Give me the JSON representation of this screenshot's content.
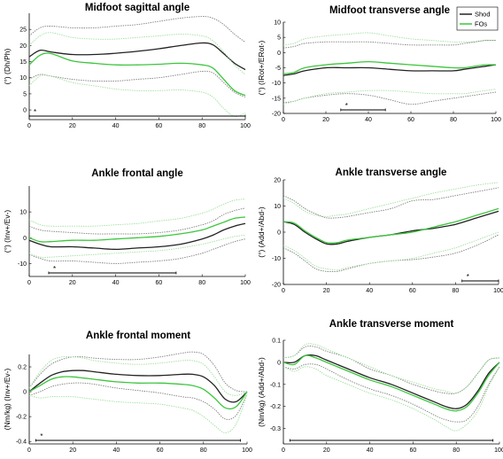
{
  "colors": {
    "shod": "#222222",
    "shod_sd": "#7a7a7a",
    "fos": "#3cc63c",
    "fos_sd": "#9adf9a",
    "axis": "#000000"
  },
  "legend": {
    "items": [
      "Shod",
      "FOs"
    ],
    "placement": "top-right of Midfoot transverse angle panel"
  },
  "chart_data": [
    {
      "type": "line",
      "title": "Midfoot sagittal angle",
      "ylabel": "(°) (Dh/Ph)",
      "xlim": [
        0,
        100
      ],
      "ylim": [
        -3,
        30
      ],
      "xticks": [
        0,
        20,
        40,
        60,
        80,
        100
      ],
      "yticks": [
        0,
        5,
        10,
        15,
        20,
        25
      ],
      "x": [
        0,
        5,
        10,
        20,
        30,
        40,
        50,
        60,
        70,
        80,
        85,
        90,
        95,
        100
      ],
      "series": [
        {
          "name": "Shod",
          "role": "mean",
          "values": [
            16.5,
            18.5,
            18,
            17.2,
            17.2,
            17.6,
            18.2,
            19,
            20,
            20.8,
            20.2,
            17.5,
            14.5,
            12.5
          ]
        },
        {
          "name": "Shod",
          "role": "sd",
          "values": [
            23,
            25.5,
            26,
            25.5,
            25.5,
            26,
            26.5,
            27.5,
            28.5,
            29,
            28.5,
            26.5,
            23.5,
            21
          ]
        },
        {
          "name": "Shod",
          "role": "sd",
          "values": [
            9.5,
            11,
            10.5,
            9.5,
            9,
            9,
            9.5,
            10,
            11,
            12,
            11.5,
            8.5,
            5.5,
            4
          ]
        },
        {
          "name": "FOs",
          "role": "mean",
          "values": [
            14,
            17,
            17.5,
            15.2,
            14.5,
            14,
            14,
            14.2,
            14.5,
            14,
            13,
            9.5,
            6,
            4.5
          ]
        },
        {
          "name": "FOs",
          "role": "sd",
          "values": [
            20,
            23,
            24,
            22.5,
            22,
            22,
            22.5,
            23,
            23.5,
            23,
            21.5,
            18,
            14,
            11
          ]
        },
        {
          "name": "FOs",
          "role": "sd",
          "values": [
            7.5,
            10.5,
            10.5,
            8.5,
            7.5,
            6.5,
            6,
            6,
            6.2,
            5.5,
            4,
            0.5,
            -2,
            -1
          ]
        }
      ],
      "significance": [
        {
          "from": 0,
          "to": 100,
          "label": "*"
        }
      ]
    },
    {
      "type": "line",
      "title": "Midfoot transverse angle",
      "ylabel": "(°) (IRot+/ERot-)",
      "xlim": [
        0,
        100
      ],
      "ylim": [
        -20,
        10
      ],
      "xticks": [
        0,
        20,
        40,
        60,
        80,
        100
      ],
      "yticks": [
        10,
        5,
        0,
        -5,
        -10,
        -15,
        -20
      ],
      "x": [
        0,
        5,
        10,
        20,
        30,
        40,
        50,
        60,
        70,
        80,
        85,
        90,
        95,
        100
      ],
      "series": [
        {
          "name": "Shod",
          "role": "mean",
          "values": [
            -7.5,
            -7,
            -6,
            -5,
            -5,
            -5,
            -5.5,
            -6,
            -6,
            -6,
            -5.5,
            -5,
            -4.5,
            -4
          ]
        },
        {
          "name": "Shod",
          "role": "sd",
          "values": [
            1.5,
            2,
            3,
            3.5,
            3.5,
            3.5,
            3,
            2.5,
            2.5,
            2.5,
            3,
            3.5,
            4,
            4
          ]
        },
        {
          "name": "Shod",
          "role": "sd",
          "values": [
            -16.5,
            -16,
            -15,
            -14,
            -13.5,
            -14,
            -15.5,
            -17,
            -16,
            -15,
            -14.5,
            -14,
            -13.5,
            -13
          ]
        },
        {
          "name": "FOs",
          "role": "mean",
          "values": [
            -7,
            -6.5,
            -5,
            -4,
            -3.5,
            -3,
            -3.5,
            -4,
            -4.5,
            -5,
            -5,
            -4.5,
            -4,
            -4
          ]
        },
        {
          "name": "FOs",
          "role": "sd",
          "values": [
            2.5,
            3,
            4.5,
            5.5,
            6,
            6.5,
            5.5,
            4.5,
            4,
            3.5,
            3.5,
            3.5,
            4,
            4
          ]
        },
        {
          "name": "FOs",
          "role": "sd",
          "values": [
            -17,
            -16,
            -15,
            -13.5,
            -13,
            -12.5,
            -12.5,
            -13,
            -13.5,
            -13.5,
            -13.5,
            -13,
            -12.5,
            -12
          ]
        }
      ],
      "significance": [
        {
          "from": 27,
          "to": 48,
          "label": "*"
        }
      ]
    },
    {
      "type": "line",
      "title": "Ankle frontal angle",
      "ylabel": "(°) (Inv+/Ev-)",
      "xlim": [
        0,
        100
      ],
      "ylim": [
        -15,
        20
      ],
      "xticks": [
        0,
        20,
        40,
        60,
        80,
        100
      ],
      "yticks": [
        10,
        0,
        -10
      ],
      "x": [
        0,
        5,
        10,
        20,
        30,
        40,
        50,
        60,
        70,
        80,
        85,
        90,
        95,
        100
      ],
      "series": [
        {
          "name": "Shod",
          "role": "mean",
          "values": [
            -1,
            -2.5,
            -3.5,
            -3.5,
            -4,
            -4.5,
            -4,
            -3.5,
            -2.5,
            -0.5,
            1,
            3,
            4.5,
            5.5
          ]
        },
        {
          "name": "Shod",
          "role": "sd",
          "values": [
            4.5,
            3,
            2.5,
            2,
            1.5,
            1.5,
            1.5,
            2,
            3,
            5,
            6.5,
            9,
            10.5,
            11.5
          ]
        },
        {
          "name": "Shod",
          "role": "sd",
          "values": [
            -6.5,
            -8,
            -9,
            -9,
            -9.5,
            -10,
            -9.5,
            -9,
            -8,
            -6,
            -4.5,
            -3,
            -1.5,
            -0.5
          ]
        },
        {
          "name": "FOs",
          "role": "mean",
          "values": [
            0,
            -1.5,
            -1.5,
            -1,
            -1,
            -0.5,
            0,
            0.5,
            1.5,
            3,
            4.5,
            6,
            7.5,
            8
          ]
        },
        {
          "name": "FOs",
          "role": "sd",
          "values": [
            7,
            5,
            4.5,
            4.5,
            4.5,
            5,
            5.5,
            6.5,
            7.5,
            9.5,
            11,
            13,
            14.5,
            15
          ]
        },
        {
          "name": "FOs",
          "role": "sd",
          "values": [
            -6,
            -7.5,
            -7.5,
            -7,
            -6.5,
            -6,
            -5.5,
            -5,
            -4,
            -2.5,
            -1.5,
            -0.5,
            0.5,
            1
          ]
        }
      ],
      "significance": [
        {
          "from": 9,
          "to": 68,
          "label": "*"
        }
      ]
    },
    {
      "type": "line",
      "title": "Ankle transverse angle",
      "ylabel": "(°) (Add+/Abd-)",
      "xlim": [
        0,
        100
      ],
      "ylim": [
        -20,
        20
      ],
      "xticks": [
        0,
        20,
        40,
        60,
        80,
        100
      ],
      "yticks": [
        20,
        10,
        0,
        -10,
        -20
      ],
      "x": [
        0,
        5,
        10,
        15,
        20,
        25,
        30,
        40,
        50,
        60,
        70,
        80,
        90,
        100
      ],
      "series": [
        {
          "name": "Shod",
          "role": "mean",
          "values": [
            4,
            3,
            0,
            -2.5,
            -4.5,
            -4.5,
            -3.5,
            -2,
            -1,
            0.5,
            1.5,
            3,
            5.5,
            8
          ]
        },
        {
          "name": "Shod",
          "role": "sd",
          "values": [
            14,
            12,
            9,
            7,
            5.5,
            5.5,
            6,
            7.5,
            9,
            12,
            12.5,
            14,
            15.5,
            17
          ]
        },
        {
          "name": "Shod",
          "role": "sd",
          "values": [
            -6,
            -8,
            -11,
            -14,
            -15,
            -15,
            -14,
            -12,
            -11,
            -10.5,
            -9.5,
            -8,
            -5,
            -1
          ]
        },
        {
          "name": "FOs",
          "role": "mean",
          "values": [
            4,
            3.5,
            0.5,
            -2,
            -4,
            -4,
            -3,
            -2,
            -1,
            0,
            2,
            4,
            6.5,
            9
          ]
        },
        {
          "name": "FOs",
          "role": "sd",
          "values": [
            13,
            11,
            8,
            6.5,
            6,
            6.5,
            7,
            9,
            11,
            13,
            15,
            16.5,
            18,
            19
          ]
        },
        {
          "name": "FOs",
          "role": "sd",
          "values": [
            -5,
            -7,
            -10,
            -13,
            -14,
            -14.5,
            -13.5,
            -12,
            -11,
            -10,
            -8,
            -6,
            -3,
            0
          ]
        }
      ],
      "significance": [
        {
          "from": 83,
          "to": 100,
          "label": "*"
        }
      ]
    },
    {
      "type": "line",
      "title": "Ankle frontal moment",
      "ylabel": "(Nm/kg) (Inv+/Ev-)",
      "xlim": [
        0,
        100
      ],
      "ylim": [
        -0.42,
        0.3
      ],
      "xticks": [
        0,
        20,
        40,
        60,
        80,
        100
      ],
      "yticks": [
        0.2,
        0,
        -0.2,
        -0.4
      ],
      "x": [
        0,
        5,
        10,
        15,
        20,
        25,
        30,
        40,
        50,
        60,
        70,
        75,
        80,
        85,
        90,
        95,
        100
      ],
      "series": [
        {
          "name": "Shod",
          "role": "mean",
          "values": [
            0,
            0.07,
            0.13,
            0.16,
            0.17,
            0.17,
            0.16,
            0.14,
            0.13,
            0.13,
            0.14,
            0.14,
            0.12,
            0.05,
            -0.06,
            -0.08,
            0
          ]
        },
        {
          "name": "Shod",
          "role": "sd",
          "values": [
            0.03,
            0.14,
            0.22,
            0.26,
            0.28,
            0.28,
            0.27,
            0.26,
            0.26,
            0.28,
            0.31,
            0.32,
            0.3,
            0.21,
            0.07,
            0.01,
            0
          ]
        },
        {
          "name": "Shod",
          "role": "sd",
          "values": [
            -0.03,
            0,
            0.04,
            0.06,
            0.07,
            0.07,
            0.06,
            0.03,
            0.01,
            -0.01,
            -0.04,
            -0.05,
            -0.08,
            -0.14,
            -0.22,
            -0.19,
            -0.02
          ]
        },
        {
          "name": "FOs",
          "role": "mean",
          "values": [
            0,
            0.05,
            0.1,
            0.12,
            0.12,
            0.11,
            0.1,
            0.08,
            0.07,
            0.07,
            0.06,
            0.05,
            0.02,
            -0.05,
            -0.13,
            -0.12,
            0
          ]
        },
        {
          "name": "FOs",
          "role": "sd",
          "values": [
            0.03,
            0.16,
            0.25,
            0.28,
            0.28,
            0.27,
            0.25,
            0.23,
            0.22,
            0.23,
            0.25,
            0.25,
            0.22,
            0.12,
            0,
            -0.03,
            0
          ]
        },
        {
          "name": "FOs",
          "role": "sd",
          "values": [
            -0.03,
            -0.05,
            -0.04,
            -0.04,
            -0.04,
            -0.05,
            -0.06,
            -0.08,
            -0.09,
            -0.1,
            -0.13,
            -0.15,
            -0.2,
            -0.27,
            -0.33,
            -0.26,
            -0.02
          ]
        }
      ],
      "significance": [
        {
          "from": 3,
          "to": 97,
          "label": "*"
        }
      ]
    },
    {
      "type": "line",
      "title": "Ankle transverse moment",
      "ylabel": "(Nm/kg) (Add+/Abd-)",
      "xlim": [
        0,
        100
      ],
      "ylim": [
        -0.37,
        0.1
      ],
      "xticks": [
        0,
        20,
        40,
        60,
        80,
        100
      ],
      "yticks": [
        0.1,
        0,
        -0.1,
        -0.2,
        -0.3
      ],
      "x": [
        0,
        5,
        10,
        15,
        20,
        30,
        40,
        50,
        60,
        70,
        75,
        80,
        85,
        90,
        95,
        100
      ],
      "series": [
        {
          "name": "Shod",
          "role": "mean",
          "values": [
            0,
            0,
            0.03,
            0.03,
            0.01,
            -0.03,
            -0.07,
            -0.1,
            -0.14,
            -0.18,
            -0.2,
            -0.21,
            -0.19,
            -0.13,
            -0.05,
            0
          ]
        },
        {
          "name": "Shod",
          "role": "sd",
          "values": [
            0.02,
            0.03,
            0.07,
            0.07,
            0.05,
            0.02,
            -0.03,
            -0.06,
            -0.1,
            -0.13,
            -0.14,
            -0.14,
            -0.11,
            -0.05,
            0.01,
            0.02
          ]
        },
        {
          "name": "Shod",
          "role": "sd",
          "values": [
            -0.02,
            -0.03,
            -0.01,
            -0.01,
            -0.03,
            -0.08,
            -0.12,
            -0.15,
            -0.19,
            -0.24,
            -0.26,
            -0.27,
            -0.26,
            -0.2,
            -0.1,
            -0.02
          ]
        },
        {
          "name": "FOs",
          "role": "mean",
          "values": [
            0,
            -0.01,
            0.03,
            0.02,
            0,
            -0.04,
            -0.08,
            -0.11,
            -0.15,
            -0.19,
            -0.21,
            -0.22,
            -0.2,
            -0.14,
            -0.06,
            0
          ]
        },
        {
          "name": "FOs",
          "role": "sd",
          "values": [
            0.02,
            0.03,
            0.08,
            0.08,
            0.06,
            0.02,
            -0.02,
            -0.06,
            -0.09,
            -0.12,
            -0.13,
            -0.14,
            -0.11,
            -0.05,
            0.01,
            0.02
          ]
        },
        {
          "name": "FOs",
          "role": "sd",
          "values": [
            -0.02,
            -0.04,
            -0.02,
            -0.03,
            -0.06,
            -0.1,
            -0.14,
            -0.17,
            -0.21,
            -0.26,
            -0.29,
            -0.31,
            -0.28,
            -0.22,
            -0.11,
            -0.02
          ]
        }
      ],
      "significance": [
        {
          "from": 3,
          "to": 97,
          "label": ""
        }
      ]
    }
  ]
}
